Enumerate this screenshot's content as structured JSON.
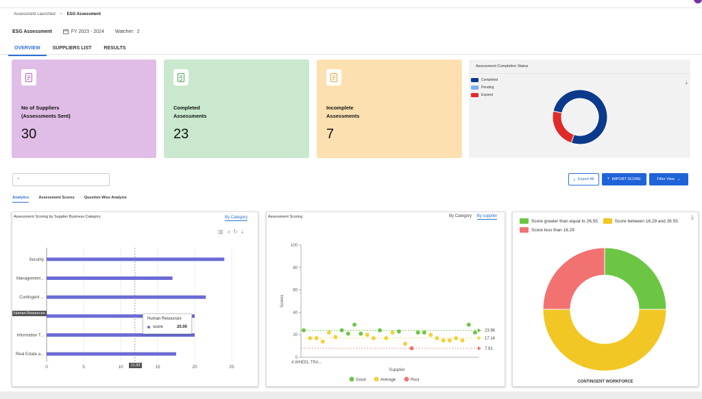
{
  "crumbs": {
    "parent": "Assessment Launched",
    "sep": ">",
    "current": "ESG Assessment"
  },
  "header": {
    "title": "ESG Assessment",
    "fy": "FY 2023 - 2024",
    "watcher": "Watcher:",
    "watcher_value": "2"
  },
  "tabs": [
    "OVERVIEW",
    "SUPPLIERS LIST",
    "RESULTS"
  ],
  "cards": [
    {
      "line1": "No of Suppliers",
      "line2": "(Assessments Sent)",
      "value": "30",
      "color": "#e0bde6"
    },
    {
      "line1": "Completed",
      "line2": "Assessments",
      "value": "23",
      "color": "#c9e8cd"
    },
    {
      "line1": "Incomplete",
      "line2": "Assessments",
      "value": "7",
      "color": "#fde0b0"
    }
  ],
  "completion": {
    "title": "Assessment Completion Status",
    "legend": [
      {
        "label": "Completed",
        "color": "#0b3a8c"
      },
      {
        "label": "Pending",
        "color": "#7ab2ef"
      },
      {
        "label": "Expired",
        "color": "#df2a2a"
      }
    ],
    "chart_data": {
      "type": "pie",
      "categories": [
        "Completed",
        "Pending",
        "Expired"
      ],
      "values": [
        23,
        0,
        7
      ]
    }
  },
  "toolbar": {
    "search_icon": "search-icon",
    "export": "Export All",
    "import": "IMPORT SCORE",
    "filter": "Filter View"
  },
  "subtabs": [
    "Analytics",
    "Assessment Scores",
    "Question Wise Analysis"
  ],
  "panel1": {
    "title": "Assessment Scoring by Supplier Business Category",
    "toggle": "By Category",
    "tooltip": {
      "title": "Human Resources",
      "key": "score",
      "value": "20.00"
    },
    "highlight_label": "Human Resources",
    "crosshair_value": "11.93",
    "chart_data": {
      "type": "bar",
      "orientation": "horizontal",
      "categories": [
        "Security",
        "Management...",
        "Contingent ...",
        "Human Resources",
        "Information T...",
        "Real Estate a..."
      ],
      "values": [
        24,
        17,
        21.5,
        20,
        20,
        17.5
      ],
      "xlim": [
        0,
        25
      ],
      "xticks": [
        "0",
        "5",
        "10",
        "15",
        "20",
        "25"
      ],
      "color": "#6b6bd6"
    }
  },
  "panel2": {
    "title": "Assessment Scoring",
    "toggle_a": "By Category",
    "toggle_b": "By supplier",
    "xlabel": "Supplier",
    "ylabel": "Scores",
    "xtick": "4 WHEEL TRA...",
    "legend": [
      {
        "label": "Good",
        "color": "#6cc644"
      },
      {
        "label": "Average",
        "color": "#f2d13b"
      },
      {
        "label": "Poor",
        "color": "#f27272"
      }
    ],
    "chart_data": {
      "type": "scatter",
      "ylim": [
        0,
        100
      ],
      "yticks": [
        "0",
        "20",
        "40",
        "60",
        "80",
        "100"
      ],
      "ref_lines": [
        {
          "value": 23.96,
          "color": "#6cc644"
        },
        {
          "value": 17.14,
          "color": "#f2d13b"
        },
        {
          "value": 7.91,
          "color": "#f27272"
        }
      ],
      "points": [
        {
          "y": 24,
          "c": "good"
        },
        {
          "y": 17,
          "c": "avg"
        },
        {
          "y": 17,
          "c": "avg"
        },
        {
          "y": 14,
          "c": "avg"
        },
        {
          "y": 22,
          "c": "avg"
        },
        {
          "y": 18,
          "c": "avg"
        },
        {
          "y": 24,
          "c": "good"
        },
        {
          "y": 21,
          "c": "good"
        },
        {
          "y": 29,
          "c": "good"
        },
        {
          "y": 21,
          "c": "good"
        },
        {
          "y": 20,
          "c": "avg"
        },
        {
          "y": 17,
          "c": "avg"
        },
        {
          "y": 24,
          "c": "good"
        },
        {
          "y": 17,
          "c": "avg"
        },
        {
          "y": 22,
          "c": "avg"
        },
        {
          "y": 23,
          "c": "good"
        },
        {
          "y": 12,
          "c": "avg"
        },
        {
          "y": 8,
          "c": "poor"
        },
        {
          "y": 22,
          "c": "good"
        },
        {
          "y": 22,
          "c": "good"
        },
        {
          "y": 20,
          "c": "avg"
        },
        {
          "y": 17,
          "c": "avg"
        },
        {
          "y": 15,
          "c": "avg"
        },
        {
          "y": 15,
          "c": "avg"
        },
        {
          "y": 17,
          "c": "avg"
        },
        {
          "y": 15,
          "c": "avg"
        },
        {
          "y": 29,
          "c": "good"
        },
        {
          "y": 22,
          "c": "good"
        }
      ]
    }
  },
  "panel3": {
    "legend": [
      {
        "label": "Score greater than equal to 26.55",
        "color": "#6cc644"
      },
      {
        "label": "Score between 16.29 and 26.55",
        "color": "#f2c624"
      },
      {
        "label": "Score less than 16.29",
        "color": "#f27272"
      }
    ],
    "caption": "CONTINGENT WORKFORCE",
    "chart_data": {
      "type": "pie",
      "categories": [
        "Score greater than equal to 26.55",
        "Score between 16.29 and 26.55",
        "Score less than 16.29"
      ],
      "values": [
        25,
        50,
        25
      ]
    }
  }
}
